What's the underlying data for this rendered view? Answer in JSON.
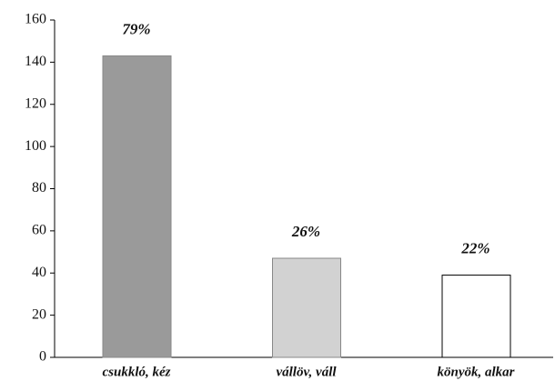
{
  "chart_data": {
    "type": "bar",
    "categories": [
      "csukkló, kéz",
      "vállöv, váll",
      "könyök, alkar"
    ],
    "values": [
      143,
      47,
      39
    ],
    "annotations": [
      "79%",
      "26%",
      "22%"
    ],
    "colors": [
      "#9a9a9a",
      "#d2d2d2",
      "#ffffff"
    ],
    "ylim": [
      0,
      160
    ],
    "yticks": [
      0,
      20,
      40,
      60,
      80,
      100,
      120,
      140,
      160
    ],
    "grid": false
  }
}
